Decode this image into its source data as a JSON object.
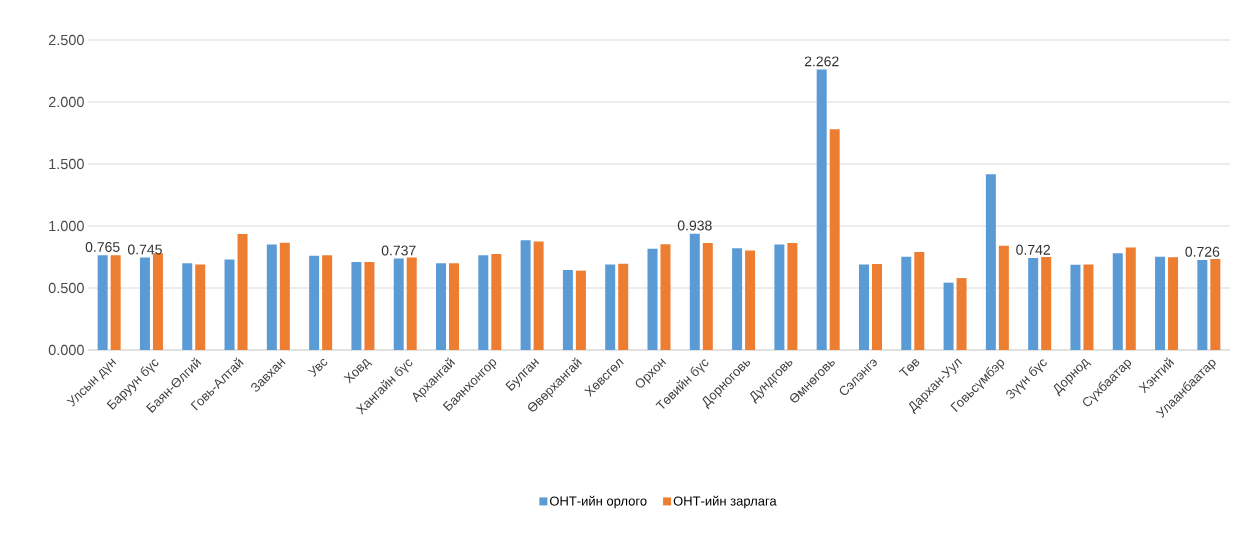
{
  "chart_data": {
    "type": "bar",
    "categories": [
      "Улсын дүн",
      "Баруун бүс",
      "Баян-Өлгий",
      "Говь-Алтай",
      "Завхан",
      "Увс",
      "Ховд",
      "Хангайн бүс",
      "Архангай",
      "Баянхонгор",
      "Булган",
      "Өвөрхангай",
      "Хөвсгөл",
      "Орхон",
      "Төвийн бүс",
      "Дорноговь",
      "Дундговь",
      "Өмнөговь",
      "Сэлэнгэ",
      "Төв",
      "Дархан-Уул",
      "Говьсүмбэр",
      "Зүүн бүс",
      "Дорнод",
      "Сүхбаатар",
      "Хэнтий",
      "Улаанбаатар"
    ],
    "series": [
      {
        "name": "ОНТ-ийн орлого",
        "color": "#5b9bd5",
        "values": [
          0.765,
          0.745,
          0.7,
          0.73,
          0.85,
          0.76,
          0.71,
          0.737,
          0.7,
          0.765,
          0.885,
          0.645,
          0.69,
          0.817,
          0.938,
          0.82,
          0.85,
          2.262,
          0.69,
          0.753,
          0.543,
          1.417,
          0.742,
          0.687,
          0.78,
          0.753,
          0.726
        ],
        "value_labels": [
          "0.765",
          "0.745",
          null,
          null,
          null,
          null,
          null,
          "0.737",
          null,
          null,
          null,
          null,
          null,
          null,
          "0.938",
          null,
          null,
          "2.262",
          null,
          null,
          null,
          null,
          "0.742",
          null,
          null,
          null,
          "0.726"
        ]
      },
      {
        "name": "ОНТ-ийн зарлага",
        "color": "#ed7d31",
        "values": [
          0.765,
          0.78,
          0.69,
          0.935,
          0.865,
          0.765,
          0.71,
          0.745,
          0.7,
          0.775,
          0.875,
          0.64,
          0.695,
          0.853,
          0.863,
          0.803,
          0.863,
          1.78,
          0.693,
          0.79,
          0.58,
          0.84,
          0.75,
          0.69,
          0.827,
          0.747,
          0.733
        ]
      }
    ],
    "ylim": [
      0,
      2.5
    ],
    "yticks": [
      {
        "value": 0,
        "label": "0.000"
      },
      {
        "value": 0.5,
        "label": "0.500"
      },
      {
        "value": 1,
        "label": "1.000"
      },
      {
        "value": 1.5,
        "label": "1.500"
      },
      {
        "value": 2,
        "label": "2.000"
      },
      {
        "value": 2.5,
        "label": "2.500"
      }
    ],
    "grid": "y",
    "legend": "bottom"
  }
}
